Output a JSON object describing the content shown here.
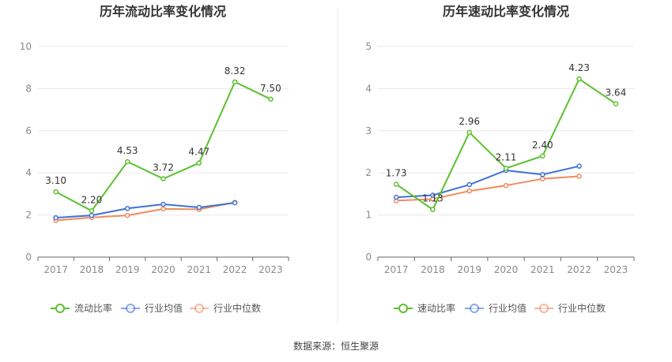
{
  "source_note": "数据来源：恒生聚源",
  "chart_data": [
    {
      "type": "line",
      "title": "历年流动比率变化情况",
      "categories": [
        "2017",
        "2018",
        "2019",
        "2020",
        "2021",
        "2022",
        "2023"
      ],
      "ylim": [
        0,
        10
      ],
      "yticks": [
        0,
        2,
        4,
        6,
        8,
        10
      ],
      "ytick_labels": [
        "0",
        "2",
        "4",
        "6",
        "8",
        "10"
      ],
      "grid": true,
      "legend_position": "bottom-center",
      "series": [
        {
          "name": "流动比率",
          "color": "#5cc02f",
          "values": [
            3.1,
            2.2,
            4.53,
            3.72,
            4.47,
            8.32,
            7.5
          ],
          "labels": [
            "3.10",
            "2.20",
            "4.53",
            "3.72",
            "4.47",
            "8.32",
            "7.50"
          ]
        },
        {
          "name": "行业均值",
          "color": "#3f73d6",
          "values": [
            1.87,
            1.98,
            2.31,
            2.51,
            2.36,
            2.58,
            null
          ]
        },
        {
          "name": "行业中位数",
          "color": "#f08a5d",
          "values": [
            1.74,
            1.88,
            1.98,
            2.29,
            2.27,
            2.6,
            null
          ]
        }
      ]
    },
    {
      "type": "line",
      "title": "历年速动比率变化情况",
      "categories": [
        "2017",
        "2018",
        "2019",
        "2020",
        "2021",
        "2022",
        "2023"
      ],
      "ylim": [
        0,
        5
      ],
      "yticks": [
        0,
        1,
        2,
        3,
        4,
        5
      ],
      "ytick_labels": [
        "0",
        "1",
        "2",
        "3",
        "4",
        "5"
      ],
      "grid": true,
      "legend_position": "bottom-center",
      "series": [
        {
          "name": "速动比率",
          "color": "#5cc02f",
          "values": [
            1.73,
            1.13,
            2.96,
            2.11,
            2.4,
            4.23,
            3.64
          ],
          "labels": [
            "1.73",
            "1.13",
            "2.96",
            "2.11",
            "2.40",
            "4.23",
            "3.64"
          ]
        },
        {
          "name": "行业均值",
          "color": "#3f73d6",
          "values": [
            1.42,
            1.47,
            1.72,
            2.06,
            1.96,
            2.16,
            null
          ]
        },
        {
          "name": "行业中位数",
          "color": "#f08a5d",
          "values": [
            1.34,
            1.38,
            1.57,
            1.7,
            1.86,
            1.92,
            null
          ]
        }
      ]
    }
  ]
}
